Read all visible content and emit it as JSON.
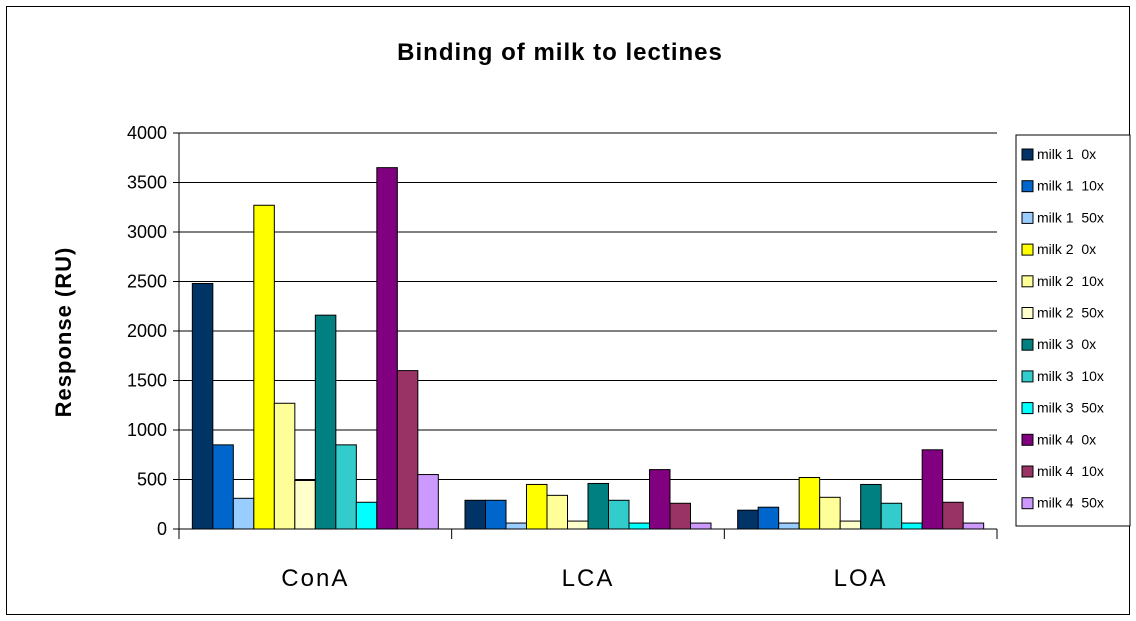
{
  "chart_data": {
    "type": "bar",
    "title": "Binding of milk to lectines",
    "xlabel": "",
    "ylabel": "Response (RU)",
    "ylim": [
      0,
      4000
    ],
    "yticks": [
      0,
      500,
      1000,
      1500,
      2000,
      2500,
      3000,
      3500,
      4000
    ],
    "grid": true,
    "legend_position": "right",
    "categories": [
      "ConA",
      "LCA",
      "LOA"
    ],
    "series": [
      {
        "name": "milk 1  0x",
        "color": "#003366",
        "values": [
          2480,
          290,
          190
        ]
      },
      {
        "name": "milk 1  10x",
        "color": "#0066cc",
        "values": [
          850,
          290,
          220
        ]
      },
      {
        "name": "milk 1  50x",
        "color": "#99ccff",
        "values": [
          310,
          60,
          60
        ]
      },
      {
        "name": "milk 2  0x",
        "color": "#ffff00",
        "values": [
          3270,
          450,
          520
        ]
      },
      {
        "name": "milk 2  10x",
        "color": "#ffff99",
        "values": [
          1270,
          340,
          320
        ]
      },
      {
        "name": "milk 2  50x",
        "color": "#ffffcc",
        "values": [
          490,
          80,
          80
        ]
      },
      {
        "name": "milk 3  0x",
        "color": "#008080",
        "values": [
          2160,
          460,
          450
        ]
      },
      {
        "name": "milk 3  10x",
        "color": "#33cccc",
        "values": [
          850,
          290,
          260
        ]
      },
      {
        "name": "milk 3  50x",
        "color": "#00ffff",
        "values": [
          270,
          60,
          60
        ]
      },
      {
        "name": "milk 4  0x",
        "color": "#800080",
        "values": [
          3650,
          600,
          800
        ]
      },
      {
        "name": "milk 4  10x",
        "color": "#993366",
        "values": [
          1600,
          260,
          270
        ]
      },
      {
        "name": "milk 4  50x",
        "color": "#cc99ff",
        "values": [
          550,
          60,
          60
        ]
      }
    ]
  }
}
